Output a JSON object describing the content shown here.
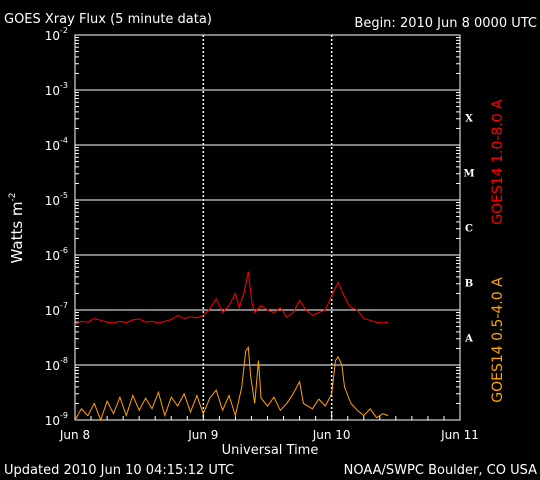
{
  "chart_data": {
    "type": "line",
    "title": "GOES Xray Flux (5 minute data)",
    "begin_label": "Begin:  2010 Jun 8 0000 UTC",
    "ylabel": "Watts m",
    "ylabel_sup": "-2",
    "xlabel": "Universal Time",
    "y_scale": "log",
    "ylim": [
      1e-09,
      0.01
    ],
    "y_ticks": [
      {
        "base": "10",
        "exp": "-2"
      },
      {
        "base": "10",
        "exp": "-3"
      },
      {
        "base": "10",
        "exp": "-4"
      },
      {
        "base": "10",
        "exp": "-5"
      },
      {
        "base": "10",
        "exp": "-6"
      },
      {
        "base": "10",
        "exp": "-7"
      },
      {
        "base": "10",
        "exp": "-8"
      },
      {
        "base": "10",
        "exp": "-9"
      }
    ],
    "x_range_days": [
      0,
      3
    ],
    "x_ticks": [
      "Jun 8",
      "Jun 9",
      "Jun 10",
      "Jun 11"
    ],
    "flare_classes": [
      {
        "label": "X",
        "flux": 0.000316
      },
      {
        "label": "M",
        "flux": 3.16e-05
      },
      {
        "label": "C",
        "flux": 3.16e-06
      },
      {
        "label": "B",
        "flux": 3.16e-07
      },
      {
        "label": "A",
        "flux": 3.16e-08
      }
    ],
    "series": [
      {
        "name": "GOES14 1.0-8.0 A",
        "color": "#ff0000",
        "points": [
          [
            0.0,
            5.5e-08
          ],
          [
            0.05,
            6.2e-08
          ],
          [
            0.1,
            6e-08
          ],
          [
            0.15,
            7e-08
          ],
          [
            0.2,
            6.5e-08
          ],
          [
            0.25,
            6e-08
          ],
          [
            0.3,
            5.8e-08
          ],
          [
            0.35,
            6.2e-08
          ],
          [
            0.4,
            5.9e-08
          ],
          [
            0.45,
            6.6e-08
          ],
          [
            0.5,
            6.9e-08
          ],
          [
            0.55,
            6e-08
          ],
          [
            0.6,
            6.2e-08
          ],
          [
            0.65,
            5.8e-08
          ],
          [
            0.7,
            6.2e-08
          ],
          [
            0.75,
            6.7e-08
          ],
          [
            0.8,
            8e-08
          ],
          [
            0.85,
            7e-08
          ],
          [
            0.9,
            7.5e-08
          ],
          [
            0.95,
            7.2e-08
          ],
          [
            1.0,
            8e-08
          ],
          [
            1.05,
            1.05e-07
          ],
          [
            1.1,
            1.6e-07
          ],
          [
            1.15,
            9e-08
          ],
          [
            1.2,
            1.2e-07
          ],
          [
            1.25,
            2e-07
          ],
          [
            1.28,
            1.1e-07
          ],
          [
            1.32,
            2.2e-07
          ],
          [
            1.35,
            5e-07
          ],
          [
            1.38,
            1.3e-07
          ],
          [
            1.4,
            9e-08
          ],
          [
            1.45,
            1.2e-07
          ],
          [
            1.5,
            1e-07
          ],
          [
            1.55,
            9e-08
          ],
          [
            1.6,
            1.1e-07
          ],
          [
            1.65,
            7.5e-08
          ],
          [
            1.7,
            9e-08
          ],
          [
            1.75,
            1.5e-07
          ],
          [
            1.8,
            1e-07
          ],
          [
            1.85,
            8e-08
          ],
          [
            1.9,
            9e-08
          ],
          [
            1.95,
            1e-07
          ],
          [
            2.0,
            1.8e-07
          ],
          [
            2.05,
            3.2e-07
          ],
          [
            2.08,
            2.2e-07
          ],
          [
            2.12,
            1.4e-07
          ],
          [
            2.15,
            1.1e-07
          ],
          [
            2.2,
            1e-07
          ],
          [
            2.25,
            7e-08
          ],
          [
            2.3,
            6.5e-08
          ],
          [
            2.35,
            6e-08
          ],
          [
            2.4,
            5.8e-08
          ],
          [
            2.44,
            6e-08
          ]
        ]
      },
      {
        "name": "GOES14 0.5-4.0 A",
        "color": "#ffa500",
        "points": [
          [
            0.0,
            1e-09
          ],
          [
            0.05,
            1.6e-09
          ],
          [
            0.1,
            1.2e-09
          ],
          [
            0.15,
            2e-09
          ],
          [
            0.2,
            1e-09
          ],
          [
            0.25,
            2.2e-09
          ],
          [
            0.3,
            1.3e-09
          ],
          [
            0.35,
            2.6e-09
          ],
          [
            0.4,
            1.2e-09
          ],
          [
            0.45,
            2.8e-09
          ],
          [
            0.5,
            1.5e-09
          ],
          [
            0.55,
            2.5e-09
          ],
          [
            0.6,
            1.6e-09
          ],
          [
            0.65,
            3.2e-09
          ],
          [
            0.7,
            1.2e-09
          ],
          [
            0.75,
            2.6e-09
          ],
          [
            0.8,
            1.8e-09
          ],
          [
            0.85,
            3e-09
          ],
          [
            0.9,
            1.4e-09
          ],
          [
            0.95,
            2.8e-09
          ],
          [
            1.0,
            1.3e-09
          ],
          [
            1.05,
            2.5e-09
          ],
          [
            1.1,
            3.5e-09
          ],
          [
            1.15,
            1.5e-09
          ],
          [
            1.2,
            2.8e-09
          ],
          [
            1.25,
            1.2e-09
          ],
          [
            1.3,
            4e-09
          ],
          [
            1.33,
            1.8e-08
          ],
          [
            1.35,
            2.1e-08
          ],
          [
            1.37,
            6e-09
          ],
          [
            1.4,
            2e-09
          ],
          [
            1.43,
            1.2e-08
          ],
          [
            1.45,
            2.5e-09
          ],
          [
            1.5,
            1.8e-09
          ],
          [
            1.55,
            2.6e-09
          ],
          [
            1.6,
            1.5e-09
          ],
          [
            1.65,
            2e-09
          ],
          [
            1.7,
            3e-09
          ],
          [
            1.75,
            5e-09
          ],
          [
            1.78,
            2e-09
          ],
          [
            1.85,
            1.6e-09
          ],
          [
            1.9,
            2.4e-09
          ],
          [
            1.95,
            1.8e-09
          ],
          [
            2.0,
            3e-09
          ],
          [
            2.03,
            1.2e-08
          ],
          [
            2.05,
            1.4e-08
          ],
          [
            2.08,
            1e-08
          ],
          [
            2.1,
            4e-09
          ],
          [
            2.15,
            2e-09
          ],
          [
            2.2,
            1.5e-09
          ],
          [
            2.25,
            1.2e-09
          ],
          [
            2.3,
            1.6e-09
          ],
          [
            2.35,
            1.1e-09
          ],
          [
            2.4,
            1.3e-09
          ],
          [
            2.44,
            1.2e-09
          ]
        ]
      }
    ]
  },
  "footer": {
    "updated": "Updated 2010 Jun 10 04:15:12 UTC",
    "credit": "NOAA/SWPC Boulder, CO USA"
  }
}
